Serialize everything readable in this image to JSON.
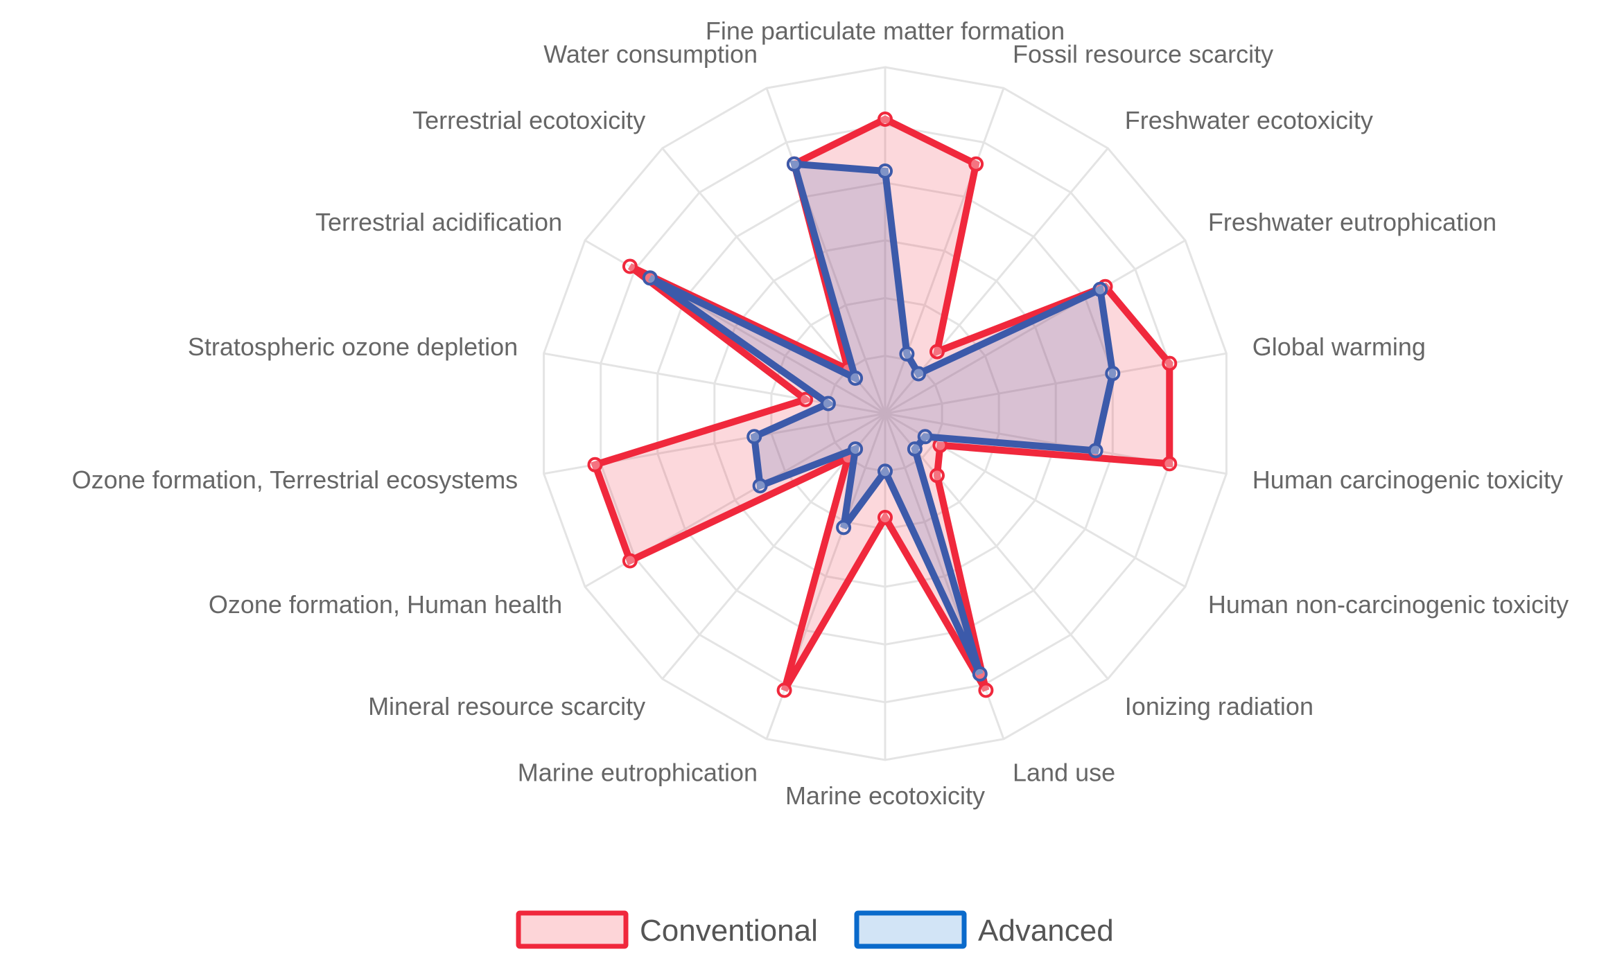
{
  "chart_data": {
    "type": "radar",
    "axes": [
      "Fine particulate matter formation",
      "Fossil resource scarcity",
      "Freshwater ecotoxicity",
      "Freshwater eutrophication",
      "Global warming",
      "Human carcinogenic toxicity",
      "Human non-carcinogenic toxicity",
      "Ionizing radiation",
      "Land use",
      "Marine ecotoxicity",
      "Marine eutrophication",
      "Mineral resource scarcity",
      "Ozone formation, Human health",
      "Ozone formation, Terrestrial ecosystems",
      "Stratospheric ozone depletion",
      "Terrestrial acidification",
      "Terrestrial ecotoxicity",
      "Water consumption"
    ],
    "range": [
      0,
      6
    ],
    "grid_levels": 6,
    "grid": true,
    "legend_position": "bottom",
    "series": [
      {
        "name": "Conventional",
        "color": "#f0283c",
        "fill": "rgba(240,40,60,0.18)",
        "values": [
          5.1,
          4.6,
          1.4,
          4.4,
          5.0,
          5.0,
          1.1,
          1.4,
          5.1,
          1.8,
          5.1,
          1.0,
          5.1,
          5.1,
          1.4,
          5.1,
          1.0,
          4.6
        ]
      },
      {
        "name": "Advanced",
        "color": "#3c5aaa",
        "fill": "rgba(60,90,170,0.18)",
        "values": [
          4.2,
          1.1,
          0.9,
          4.3,
          4.0,
          3.7,
          0.8,
          0.8,
          4.8,
          1.0,
          2.1,
          0.8,
          2.5,
          2.3,
          1.0,
          4.7,
          0.8,
          4.6
        ]
      }
    ]
  },
  "legend": {
    "items": [
      {
        "label": "Conventional",
        "stroke": "#f0283c",
        "fill": "#fdd5d8"
      },
      {
        "label": "Advanced",
        "stroke": "#0a6acb",
        "fill": "#d2e4f6"
      }
    ]
  }
}
